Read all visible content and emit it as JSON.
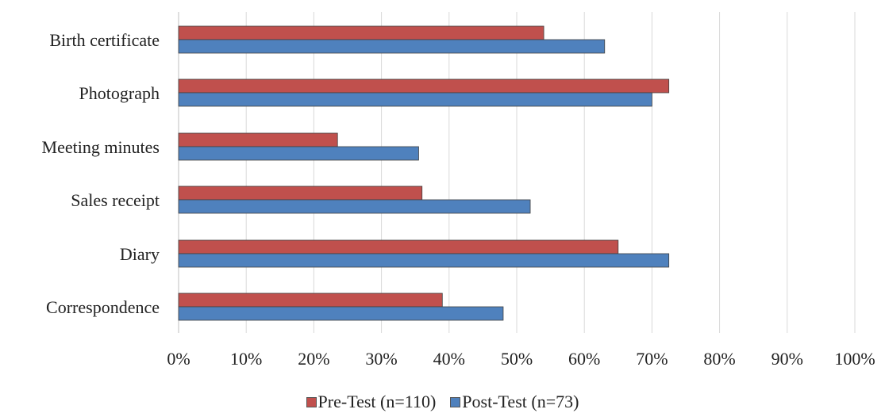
{
  "chart_data": {
    "type": "bar",
    "orientation": "horizontal",
    "categories": [
      "Birth certificate",
      "Photograph",
      "Meeting minutes",
      "Sales receipt",
      "Diary",
      "Correspondence"
    ],
    "series": [
      {
        "name": "Pre-Test (n=110)",
        "color": "#c0504d",
        "values": [
          54,
          72.5,
          23.5,
          36,
          65,
          39
        ]
      },
      {
        "name": "Post-Test (n=73)",
        "color": "#4f81bd",
        "values": [
          63,
          70,
          35.5,
          52,
          72.5,
          48
        ]
      }
    ],
    "xlim": [
      0,
      100
    ],
    "xticks": [
      "0%",
      "10%",
      "20%",
      "30%",
      "40%",
      "50%",
      "60%",
      "70%",
      "80%",
      "90%",
      "100%"
    ],
    "grid": true,
    "legend_position": "bottom"
  }
}
